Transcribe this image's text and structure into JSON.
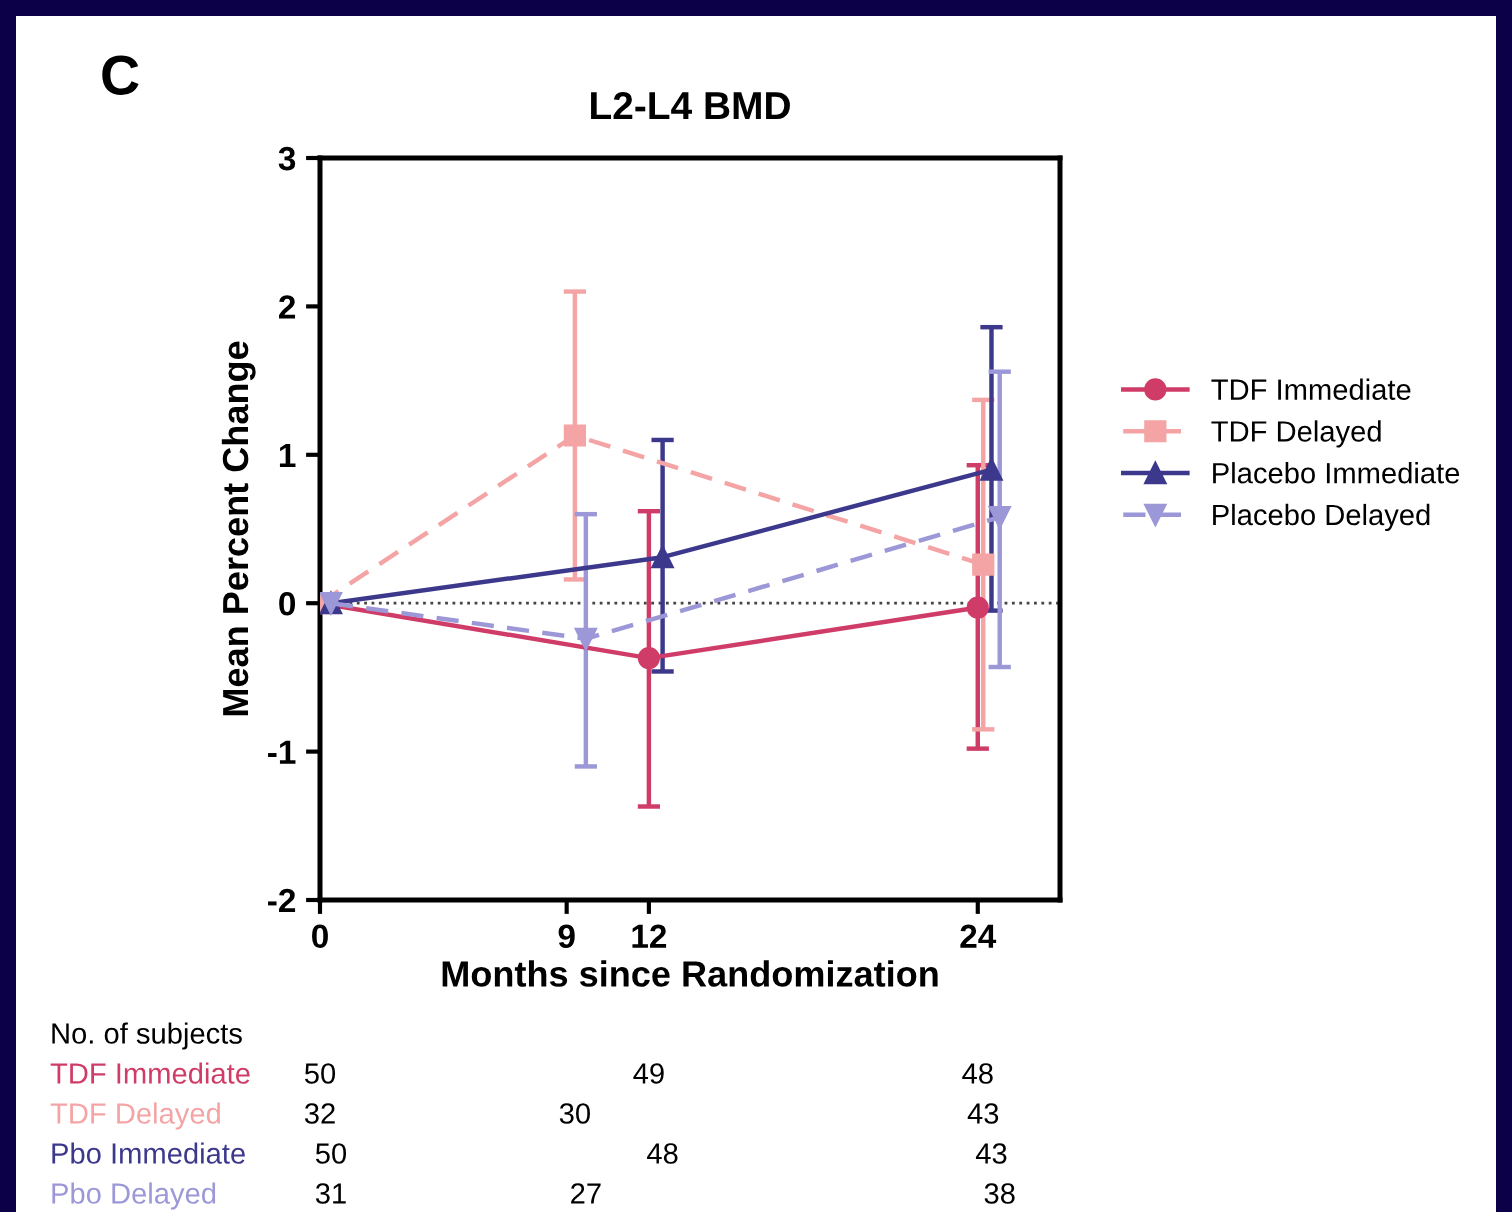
{
  "chart_data": {
    "type": "line",
    "title": "L2-L4 BMD",
    "xlabel": "Months since Randomization",
    "ylabel": "Mean Percent Change",
    "xlim": [
      0,
      27
    ],
    "xticks": [
      0,
      9,
      12,
      24
    ],
    "ylim": [
      -2,
      3
    ],
    "yticks": [
      -2,
      -1,
      0,
      1,
      2,
      3
    ],
    "grid": false,
    "legend": "right",
    "ref_lines": [
      {
        "axis": "y",
        "value": 0,
        "line_style": "dotted",
        "color": "#444444"
      }
    ],
    "series": [
      {
        "name": "TDF Immediate",
        "color": "#d03c68",
        "marker": "circle",
        "line_style": "solid",
        "x": [
          0,
          12,
          24
        ],
        "values": [
          0,
          -0.37,
          -0.03
        ],
        "errors": [
          null,
          [
            -1.37,
            0.62
          ],
          [
            -0.98,
            0.93
          ]
        ]
      },
      {
        "name": "TDF Delayed",
        "color": "#f4a4a4",
        "marker": "square",
        "line_style": "dashed",
        "x": [
          0,
          9.3,
          24.2
        ],
        "values": [
          0,
          1.13,
          0.26
        ],
        "errors": [
          null,
          [
            0.16,
            2.1
          ],
          [
            -0.85,
            1.37
          ]
        ]
      },
      {
        "name": "Placebo Immediate",
        "color": "#3c388c",
        "marker": "triangle",
        "line_style": "solid",
        "x": [
          0.4,
          12.5,
          24.5
        ],
        "values": [
          0,
          0.31,
          0.9
        ],
        "errors": [
          null,
          [
            -0.46,
            1.1
          ],
          [
            -0.05,
            1.86
          ]
        ]
      },
      {
        "name": "Placebo Delayed",
        "color": "#9c98d8",
        "marker": "triangle_down",
        "line_style": "dashed",
        "x": [
          0.4,
          9.7,
          24.8
        ],
        "values": [
          0,
          -0.24,
          0.58
        ],
        "errors": [
          null,
          [
            -1.1,
            0.6
          ],
          [
            -0.43,
            1.56
          ]
        ]
      }
    ],
    "annotations": [
      "C",
      "No. of subjects",
      "TDF Immediate",
      "50",
      "49",
      "48",
      "TDF Delayed",
      "32",
      "30",
      "43",
      "Pbo Immediate",
      "50",
      "48",
      "43",
      "Pbo Delayed",
      "31",
      "27",
      "38"
    ]
  }
}
